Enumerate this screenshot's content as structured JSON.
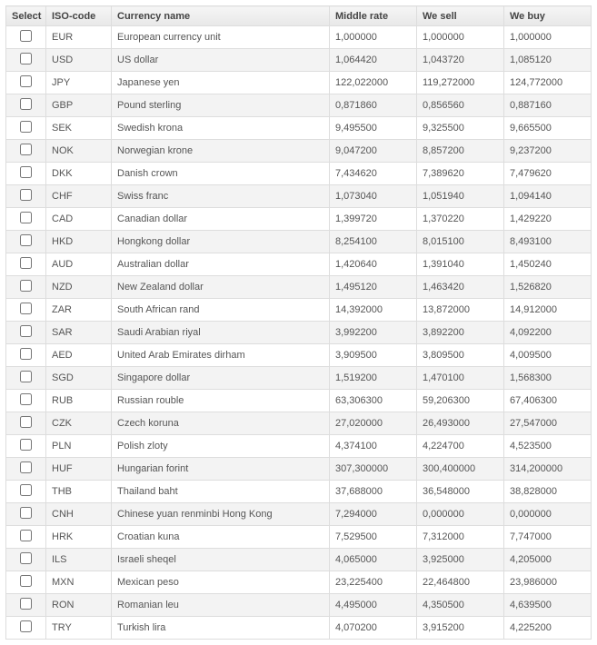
{
  "columns": {
    "select": "Select",
    "iso": "ISO-code",
    "name": "Currency name",
    "middle": "Middle rate",
    "sell": "We sell",
    "buy": "We buy"
  },
  "rows": [
    {
      "iso": "EUR",
      "name": "European currency unit",
      "middle": "1,000000",
      "sell": "1,000000",
      "buy": "1,000000"
    },
    {
      "iso": "USD",
      "name": "US dollar",
      "middle": "1,064420",
      "sell": "1,043720",
      "buy": "1,085120"
    },
    {
      "iso": "JPY",
      "name": "Japanese yen",
      "middle": "122,022000",
      "sell": "119,272000",
      "buy": "124,772000"
    },
    {
      "iso": "GBP",
      "name": "Pound sterling",
      "middle": "0,871860",
      "sell": "0,856560",
      "buy": "0,887160"
    },
    {
      "iso": "SEK",
      "name": "Swedish krona",
      "middle": "9,495500",
      "sell": "9,325500",
      "buy": "9,665500"
    },
    {
      "iso": "NOK",
      "name": "Norwegian krone",
      "middle": "9,047200",
      "sell": "8,857200",
      "buy": "9,237200"
    },
    {
      "iso": "DKK",
      "name": "Danish crown",
      "middle": "7,434620",
      "sell": "7,389620",
      "buy": "7,479620"
    },
    {
      "iso": "CHF",
      "name": "Swiss franc",
      "middle": "1,073040",
      "sell": "1,051940",
      "buy": "1,094140"
    },
    {
      "iso": "CAD",
      "name": "Canadian dollar",
      "middle": "1,399720",
      "sell": "1,370220",
      "buy": "1,429220"
    },
    {
      "iso": "HKD",
      "name": "Hongkong dollar",
      "middle": "8,254100",
      "sell": "8,015100",
      "buy": "8,493100"
    },
    {
      "iso": "AUD",
      "name": "Australian dollar",
      "middle": "1,420640",
      "sell": "1,391040",
      "buy": "1,450240"
    },
    {
      "iso": "NZD",
      "name": "New Zealand dollar",
      "middle": "1,495120",
      "sell": "1,463420",
      "buy": "1,526820"
    },
    {
      "iso": "ZAR",
      "name": "South African rand",
      "middle": "14,392000",
      "sell": "13,872000",
      "buy": "14,912000"
    },
    {
      "iso": "SAR",
      "name": "Saudi Arabian riyal",
      "middle": "3,992200",
      "sell": "3,892200",
      "buy": "4,092200"
    },
    {
      "iso": "AED",
      "name": "United Arab Emirates dirham",
      "middle": "3,909500",
      "sell": "3,809500",
      "buy": "4,009500"
    },
    {
      "iso": "SGD",
      "name": "Singapore dollar",
      "middle": "1,519200",
      "sell": "1,470100",
      "buy": "1,568300"
    },
    {
      "iso": "RUB",
      "name": "Russian rouble",
      "middle": "63,306300",
      "sell": "59,206300",
      "buy": "67,406300"
    },
    {
      "iso": "CZK",
      "name": "Czech koruna",
      "middle": "27,020000",
      "sell": "26,493000",
      "buy": "27,547000"
    },
    {
      "iso": "PLN",
      "name": "Polish zloty",
      "middle": "4,374100",
      "sell": "4,224700",
      "buy": "4,523500"
    },
    {
      "iso": "HUF",
      "name": "Hungarian forint",
      "middle": "307,300000",
      "sell": "300,400000",
      "buy": "314,200000"
    },
    {
      "iso": "THB",
      "name": "Thailand baht",
      "middle": "37,688000",
      "sell": "36,548000",
      "buy": "38,828000"
    },
    {
      "iso": "CNH",
      "name": "Chinese yuan renminbi Hong Kong",
      "middle": "7,294000",
      "sell": "0,000000",
      "buy": "0,000000"
    },
    {
      "iso": "HRK",
      "name": "Croatian kuna",
      "middle": "7,529500",
      "sell": "7,312000",
      "buy": "7,747000"
    },
    {
      "iso": "ILS",
      "name": "Israeli sheqel",
      "middle": "4,065000",
      "sell": "3,925000",
      "buy": "4,205000"
    },
    {
      "iso": "MXN",
      "name": "Mexican peso",
      "middle": "23,225400",
      "sell": "22,464800",
      "buy": "23,986000"
    },
    {
      "iso": "RON",
      "name": "Romanian leu",
      "middle": "4,495000",
      "sell": "4,350500",
      "buy": "4,639500"
    },
    {
      "iso": "TRY",
      "name": "Turkish lira",
      "middle": "4,070200",
      "sell": "3,915200",
      "buy": "4,225200"
    }
  ]
}
